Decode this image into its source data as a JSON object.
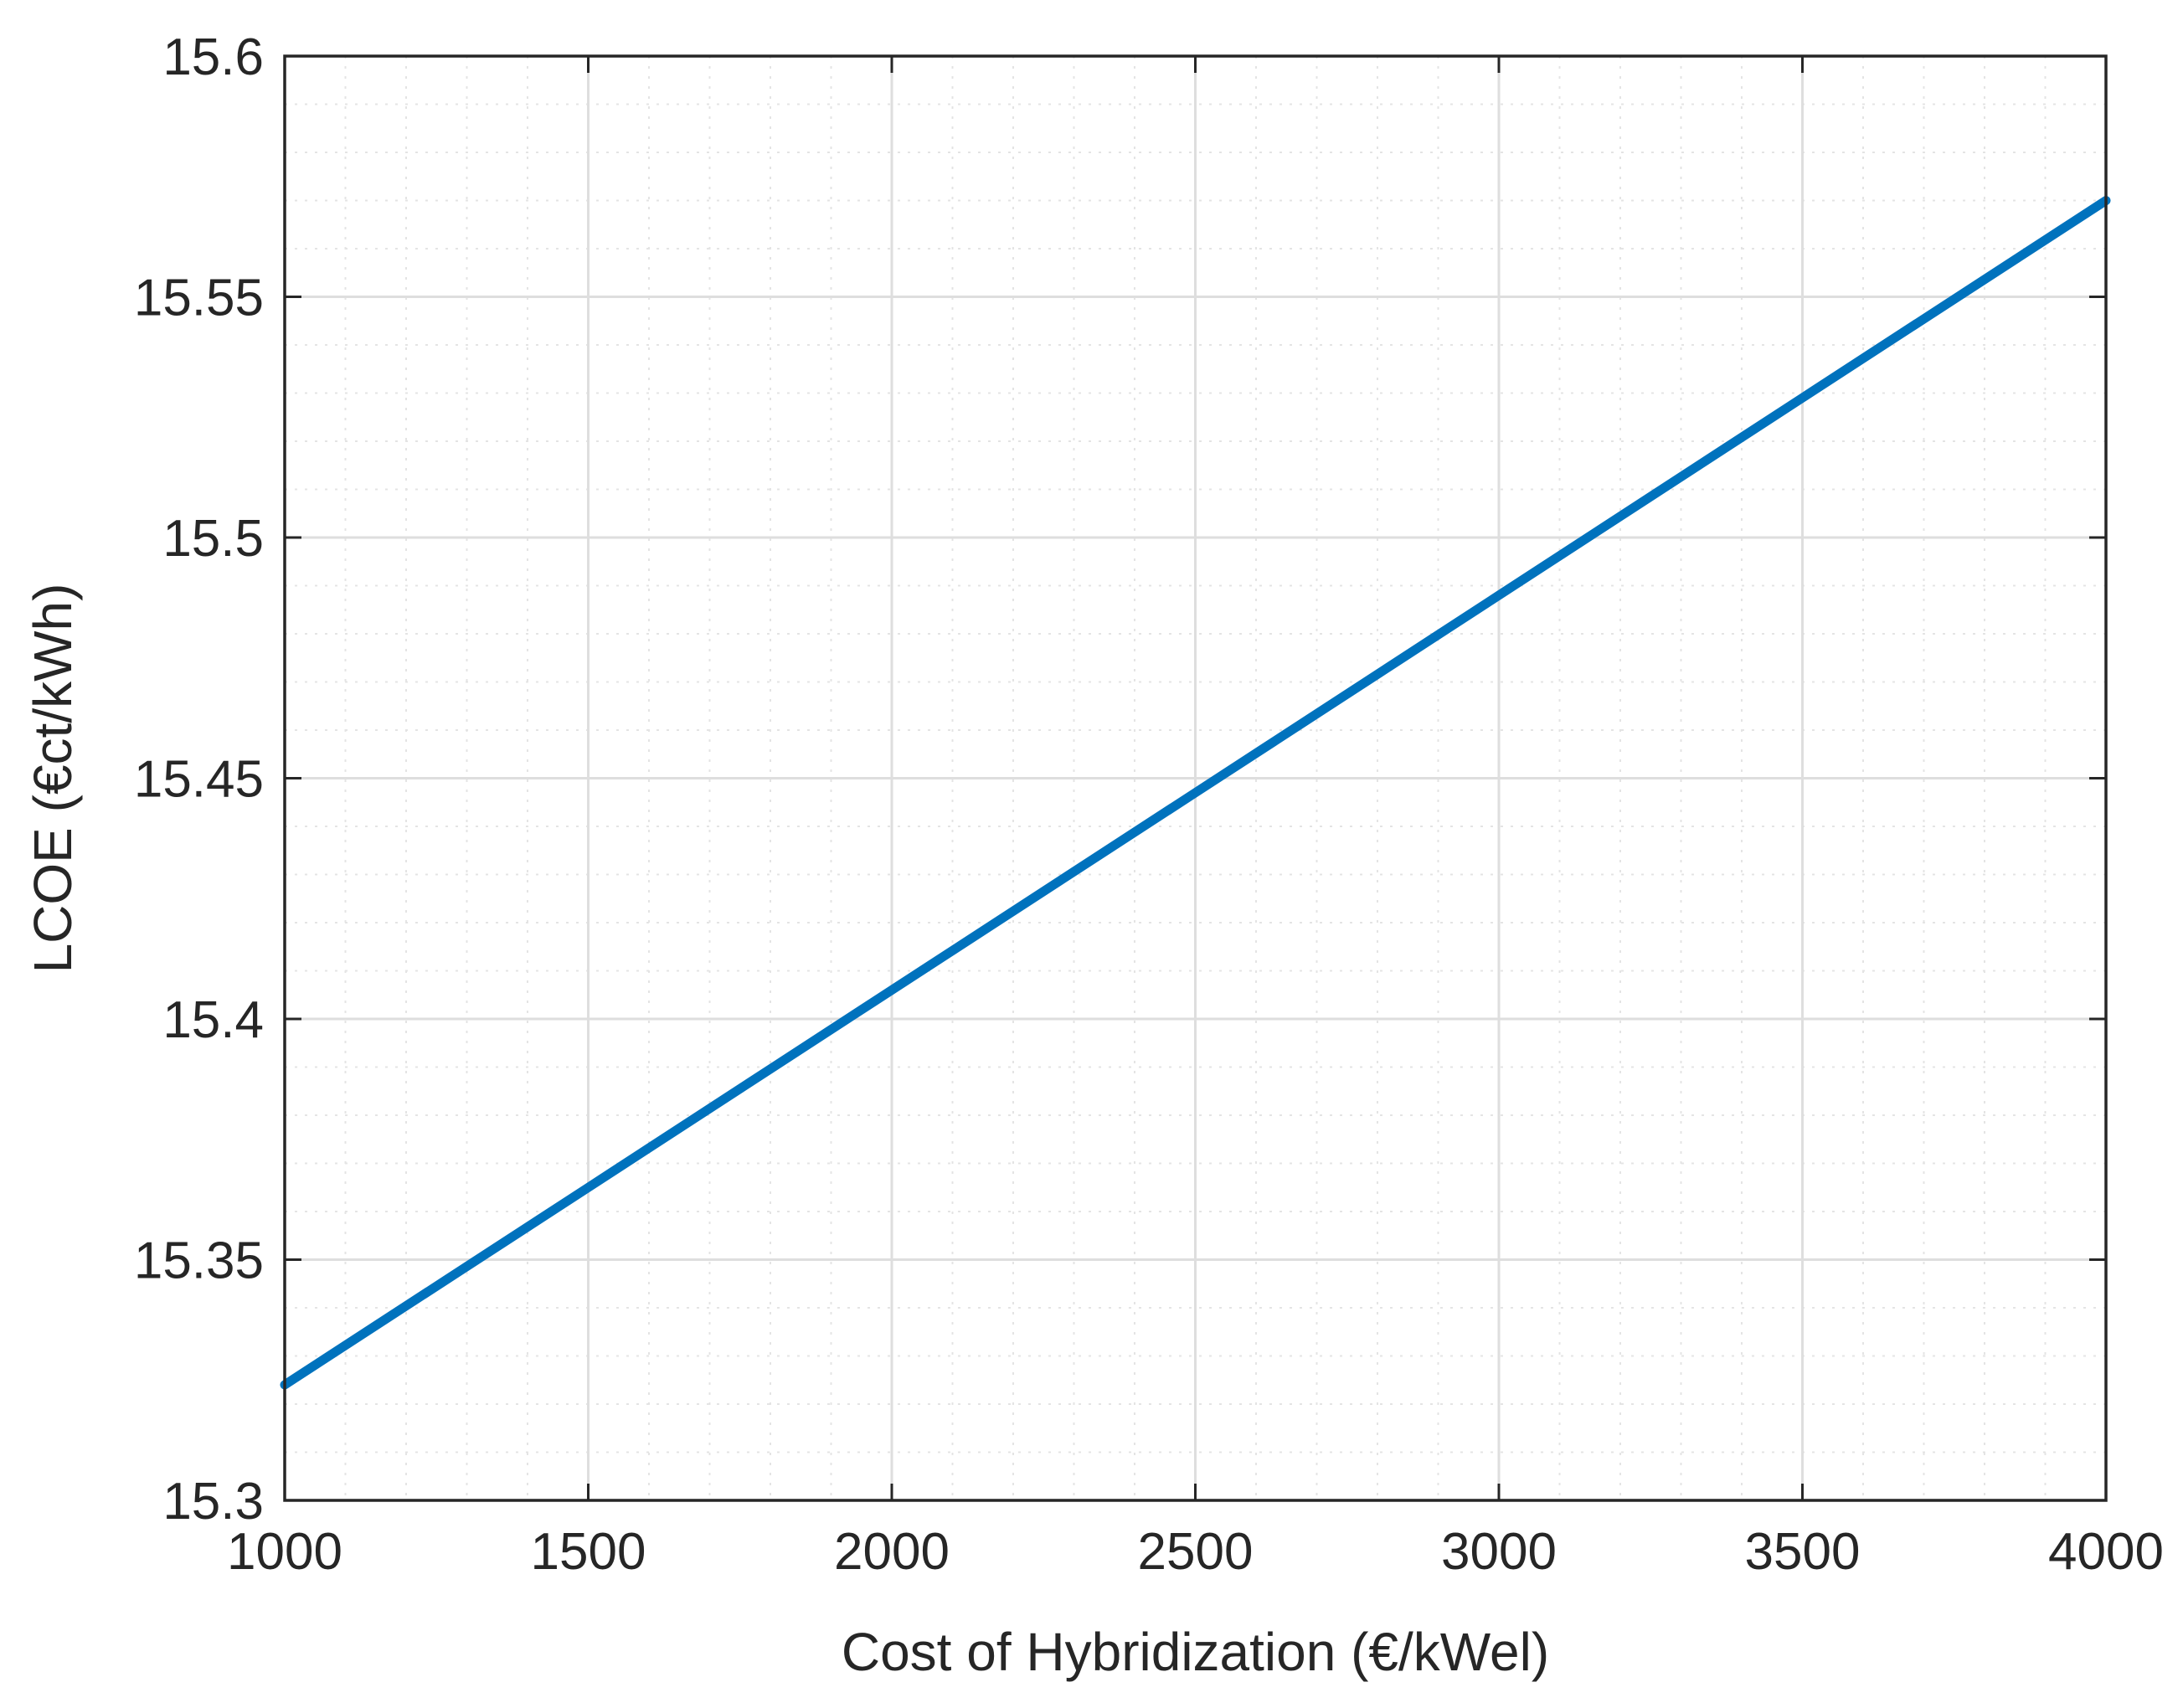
{
  "chart_data": {
    "type": "line",
    "title": "",
    "xlabel": "Cost of Hybridization (€/kWel)",
    "ylabel": "LCOE (€ct/kWh)",
    "xlim": [
      1000,
      4000
    ],
    "ylim": [
      15.3,
      15.6
    ],
    "x_ticks": [
      1000,
      1500,
      2000,
      2500,
      3000,
      3500,
      4000
    ],
    "x_tick_labels": [
      "1000",
      "1500",
      "2000",
      "2500",
      "3000",
      "3500",
      "4000"
    ],
    "y_ticks": [
      15.3,
      15.35,
      15.4,
      15.45,
      15.5,
      15.55,
      15.6
    ],
    "y_tick_labels": [
      "15.3",
      "15.35",
      "15.4",
      "15.45",
      "15.5",
      "15.55",
      "15.6"
    ],
    "grid": true,
    "minor_grid": true,
    "series": [
      {
        "color": "#0072BD",
        "x": [
          1000,
          1500,
          2000,
          2500,
          3000,
          3500,
          4000
        ],
        "y": [
          15.324,
          15.365,
          15.406,
          15.447,
          15.488,
          15.529,
          15.57
        ]
      }
    ]
  }
}
